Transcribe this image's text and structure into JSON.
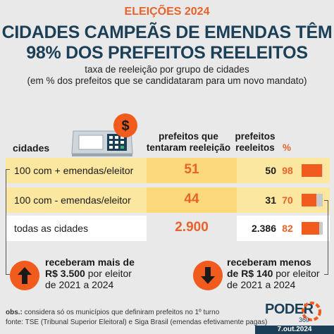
{
  "header": {
    "eyebrow": "ELEIÇÕES 2024",
    "title_line1": "CIDADES CAMPEÃS DE EMENDAS TÊM",
    "title_line2": "98% DOS PREFEITOS REELEITOS",
    "subtitle_line1": "taxa de reeleição por grupo de cidades",
    "subtitle_line2": "(em % dos prefeitos que se candidataram para um novo mandato)"
  },
  "icons": {
    "machine": "voting-machine-icon",
    "dollar": "dollar-sign-icon",
    "up": "arrow-up-icon",
    "down": "arrow-down-icon",
    "dollar_symbol": "$"
  },
  "chart_data": {
    "type": "table",
    "columns": {
      "cidades": "cidades",
      "tentaram_line1": "prefeitos que",
      "tentaram_line2": "tentaram reeleição",
      "reeleitos_line1": "prefeitos",
      "reeleitos_line2": "reeleitos",
      "pct": "%"
    },
    "rows": [
      {
        "label": "100 com + emendas/eleitor",
        "tentaram": "51",
        "reeleitos": "50",
        "pct": "98",
        "pct_value": 98
      },
      {
        "label": "100 com - emendas/eleitor",
        "tentaram": "44",
        "reeleitos": "31",
        "pct": "70",
        "pct_value": 70
      },
      {
        "label": "todas as cidades",
        "tentaram": "2.900",
        "reeleitos": "2.386",
        "pct": "82",
        "pct_value": 82
      }
    ],
    "bar_max": 100
  },
  "notes": {
    "left_bold1": "receberam mais de",
    "left_bold2": "R$ 3.500",
    "left_rest1": " por eleitor",
    "left_rest2": "de 2021 a 2024",
    "right_bold1": "receberam menos",
    "right_bold2": "de R$ 140",
    "right_rest1": " por eleitor",
    "right_rest2": "de 2021 a 2024"
  },
  "footer": {
    "obs_label": "obs.:",
    "obs_text": " considera só os municípios que definiram prefeitos no 1º turno",
    "fonte": "fonte: TSE (Tribunal Superior Eleitoral) e Siga Brasil (emendas efetivamente pagas)",
    "logo": "PODER",
    "logo_sub": "360",
    "date": "7.out.2024"
  },
  "colors": {
    "accent": "#f25b1e",
    "navy": "#1b3f57",
    "band": "#fbe7a0",
    "band_dark": "#fcd97a"
  }
}
